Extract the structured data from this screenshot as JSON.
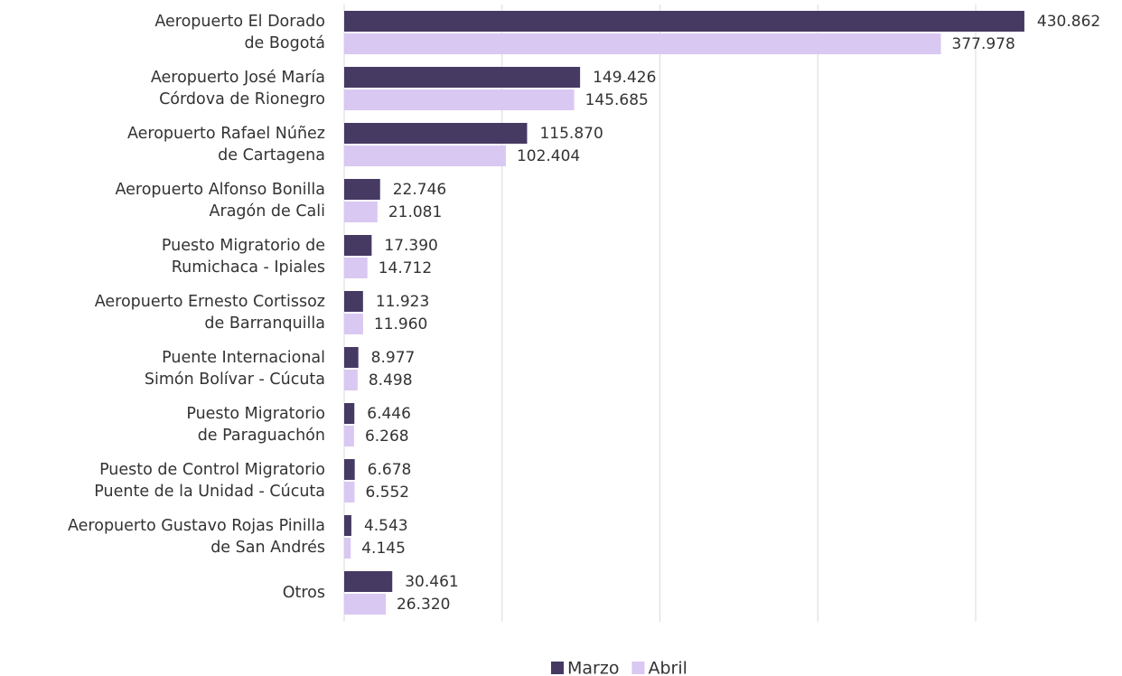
{
  "chart_data": {
    "type": "hbar",
    "categories": [
      [
        "Aeropuerto El Dorado",
        "de Bogotá"
      ],
      [
        "Aeropuerto José María",
        "Córdova de Rionegro"
      ],
      [
        "Aeropuerto Rafael Núñez",
        "de Cartagena"
      ],
      [
        "Aeropuerto Alfonso Bonilla",
        "Aragón de Cali"
      ],
      [
        "Puesto Migratorio de",
        "Rumichaca - Ipiales"
      ],
      [
        "Aeropuerto Ernesto Cortissoz",
        "de Barranquilla"
      ],
      [
        "Puente Internacional",
        "Simón Bolívar - Cúcuta"
      ],
      [
        "Puesto Migratorio",
        "de Paraguachón"
      ],
      [
        "Puesto de Control Migratorio",
        "Puente de la Unidad - Cúcuta"
      ],
      [
        "Aeropuerto Gustavo Rojas Pinilla",
        "de San Andrés"
      ],
      [
        "Otros"
      ]
    ],
    "series": [
      {
        "name": "Marzo",
        "color": "#463a63",
        "values": [
          430862,
          149426,
          115870,
          22746,
          17390,
          11923,
          8977,
          6446,
          6678,
          4543,
          30461
        ],
        "value_labels": [
          "430.862",
          "149.426",
          "115.870",
          "22.746",
          "17.390",
          "11.923",
          "8.977",
          "6.446",
          "6.678",
          "4.543",
          "30.461"
        ]
      },
      {
        "name": "Abril",
        "color": "#d9c8f2",
        "values": [
          377978,
          145685,
          102404,
          21081,
          14712,
          11960,
          8498,
          6268,
          6552,
          4145,
          26320
        ],
        "value_labels": [
          "377.978",
          "145.685",
          "102.404",
          "21.081",
          "14.712",
          "11.960",
          "8.498",
          "6.268",
          "6.552",
          "4.145",
          "26.320"
        ]
      }
    ],
    "xlim": [
      0,
      400000
    ],
    "xgrid": [
      0,
      100000,
      200000,
      300000,
      400000
    ],
    "legend": "bottom"
  }
}
